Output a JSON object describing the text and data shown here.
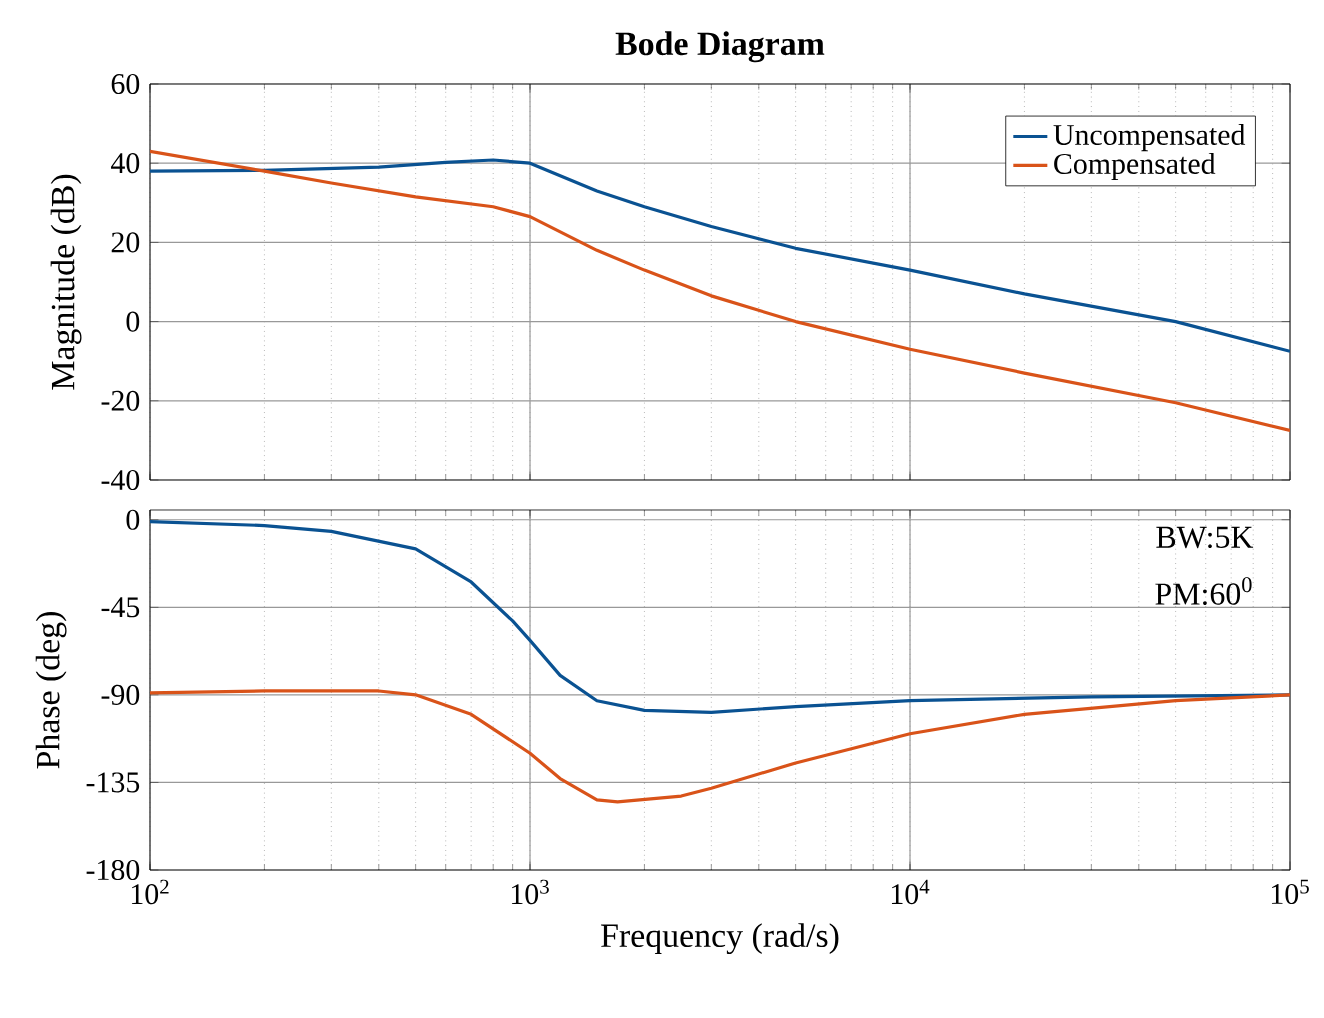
{
  "chart_data": [
    {
      "type": "line",
      "title": "Bode Diagram",
      "ylabel": "Magnitude (dB)",
      "log": "x",
      "grid": true,
      "legend": "top right",
      "tick_labels": "y",
      "xlim": [
        100,
        100000
      ],
      "ylim": [
        -40,
        60
      ],
      "xticks": [
        {
          "value": 100,
          "label": null
        },
        {
          "value": 1000,
          "label": null
        },
        {
          "value": 10000,
          "label": null
        },
        {
          "value": 100000,
          "label": null
        }
      ],
      "yticks": [
        -40,
        -20,
        0,
        20,
        40,
        60
      ],
      "series": [
        {
          "name": "Uncompensated",
          "color": "#0a5292",
          "x": [
            100,
            200,
            400,
            600,
            800,
            1000,
            1500,
            2000,
            3000,
            5000,
            10000,
            20000,
            50000,
            100000
          ],
          "values": [
            38,
            38.2,
            39,
            40.2,
            40.8,
            40,
            33,
            29,
            24,
            18.5,
            13,
            7,
            0,
            -7.5
          ]
        },
        {
          "name": "Compensated",
          "color": "#d95319",
          "x": [
            100,
            200,
            300,
            500,
            800,
            1000,
            1500,
            2000,
            3000,
            5000,
            10000,
            20000,
            50000,
            100000
          ],
          "values": [
            43,
            38,
            35,
            31.5,
            29,
            26.5,
            18,
            13,
            6.5,
            0,
            -7,
            -13,
            -20.5,
            -27.5
          ]
        }
      ]
    },
    {
      "type": "line",
      "xlabel": "Frequency  (rad/s)",
      "ylabel": "Phase (deg)",
      "log": "x",
      "grid": true,
      "xlim": [
        100,
        100000
      ],
      "ylim": [
        -180,
        5
      ],
      "xticks": [
        {
          "value": 100,
          "label": "10$^{2}$"
        },
        {
          "value": 1000,
          "label": "10$^{3}$"
        },
        {
          "value": 10000,
          "label": "10$^{4}$"
        },
        {
          "value": 100000,
          "label": "10$^{5}$"
        }
      ],
      "yticks": [
        -180,
        -135,
        -90,
        -45,
        0
      ],
      "annotations": [
        "BW:5K",
        "PM:60$^{0}$"
      ],
      "series": [
        {
          "color": "#0a5292",
          "x": [
            100,
            200,
            300,
            500,
            700,
            900,
            1000,
            1200,
            1500,
            2000,
            3000,
            5000,
            10000,
            30000,
            100000
          ],
          "values": [
            -1,
            -3,
            -6,
            -15,
            -32,
            -52,
            -62,
            -80,
            -93,
            -98,
            -99,
            -96,
            -93,
            -91,
            -90
          ]
        },
        {
          "color": "#d95319",
          "x": [
            100,
            200,
            400,
            500,
            700,
            1000,
            1200,
            1500,
            1700,
            2500,
            3000,
            5000,
            10000,
            20000,
            50000,
            100000
          ],
          "values": [
            -89,
            -88,
            -88,
            -90,
            -100,
            -120,
            -133,
            -144,
            -145,
            -142,
            -138,
            -125,
            -110,
            -100,
            -93,
            -90
          ]
        }
      ]
    }
  ]
}
